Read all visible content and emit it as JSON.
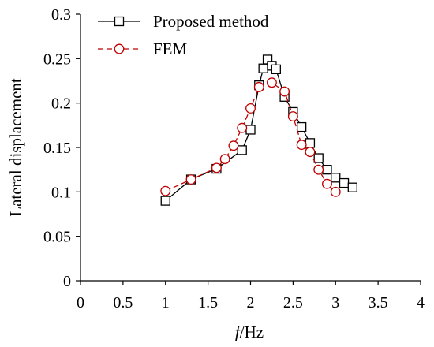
{
  "chart_data": {
    "type": "line",
    "xlabel": {
      "italic": "f",
      "rest": "/Hz"
    },
    "ylabel": "Lateral displacement",
    "xlim": [
      0,
      4
    ],
    "ylim": [
      0,
      0.3
    ],
    "x_ticks": [
      "0",
      "0.5",
      "1",
      "1.5",
      "2",
      "2.5",
      "3",
      "3.5",
      "4"
    ],
    "y_ticks": [
      "0",
      "0.05",
      "0.1",
      "0.15",
      "0.2",
      "0.25",
      "0.3"
    ],
    "grid": false,
    "legend_position": "top-left",
    "series": [
      {
        "name": "Proposed method",
        "marker": "square",
        "line_style": "solid",
        "color": "#000000",
        "x": [
          1.0,
          1.3,
          1.6,
          1.9,
          2.0,
          2.1,
          2.15,
          2.2,
          2.25,
          2.3,
          2.4,
          2.5,
          2.6,
          2.7,
          2.8,
          2.9,
          3.0,
          3.1,
          3.2
        ],
        "y": [
          0.09,
          0.114,
          0.126,
          0.147,
          0.17,
          0.22,
          0.239,
          0.249,
          0.242,
          0.238,
          0.207,
          0.19,
          0.173,
          0.155,
          0.138,
          0.125,
          0.116,
          0.11,
          0.105
        ]
      },
      {
        "name": "FEM",
        "marker": "circle",
        "line_style": "dashed",
        "color": "#c00000",
        "x": [
          1.0,
          1.3,
          1.6,
          1.7,
          1.8,
          1.9,
          2.0,
          2.1,
          2.25,
          2.4,
          2.5,
          2.6,
          2.7,
          2.8,
          2.9,
          3.0
        ],
        "y": [
          0.101,
          0.114,
          0.127,
          0.137,
          0.152,
          0.172,
          0.194,
          0.218,
          0.223,
          0.213,
          0.185,
          0.153,
          0.145,
          0.125,
          0.109,
          0.1
        ]
      }
    ]
  }
}
